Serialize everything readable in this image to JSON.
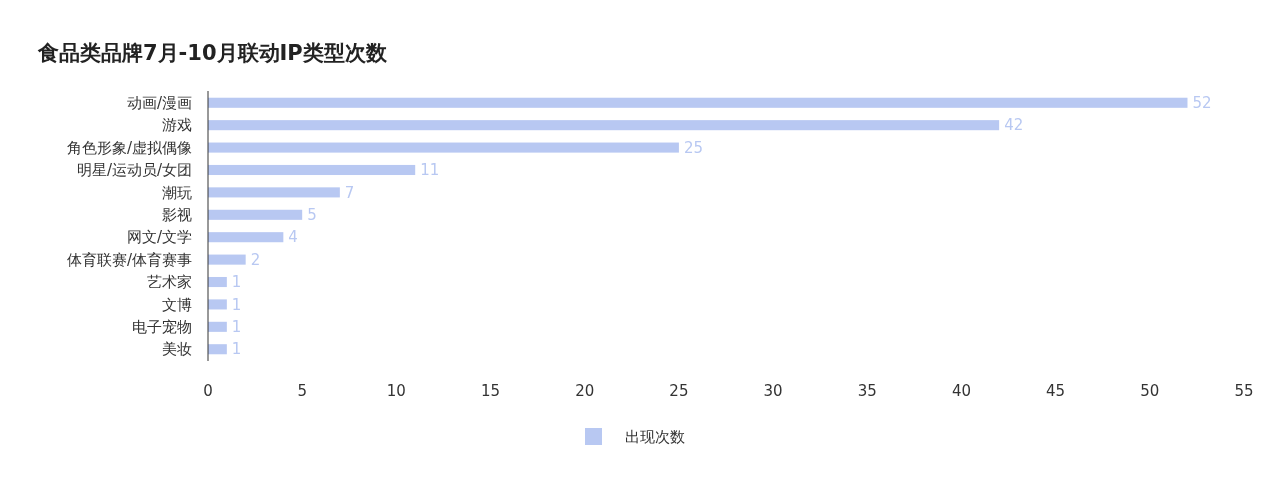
{
  "chart_data": {
    "type": "bar",
    "orientation": "horizontal",
    "title": "食品类品牌7月-10月联动IP类型次数",
    "categories": [
      "动画/漫画",
      "游戏",
      "角色形象/虚拟偶像",
      "明星/运动员/女团",
      "潮玩",
      "影视",
      "网文/文学",
      "体育联赛/体育赛事",
      "艺术家",
      "文博",
      "电子宠物",
      "美妆"
    ],
    "series": [
      {
        "name": "出现次数",
        "color": "#b8c8f2",
        "values": [
          52,
          42,
          25,
          11,
          7,
          5,
          4,
          2,
          1,
          1,
          1,
          1
        ]
      }
    ],
    "xlim": [
      0,
      55
    ],
    "xticks": [
      0,
      5,
      10,
      15,
      20,
      25,
      30,
      35,
      40,
      45,
      50,
      55
    ],
    "data_labels": true,
    "legend": "bottom",
    "grid": false
  }
}
